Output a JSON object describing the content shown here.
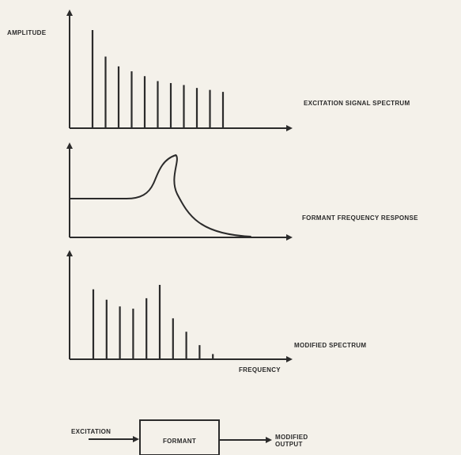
{
  "labels": {
    "amplitude": "AMPLITUDE",
    "frequency": "FREQUENCY",
    "excitation_spectrum": "EXCITATION SIGNAL SPECTRUM",
    "formant_response": "FORMANT FREQUENCY RESPONSE",
    "modified_spectrum": "MODIFIED SPECTRUM"
  },
  "block_diagram": {
    "input_label": "EXCITATION",
    "block_label": "FORMANT",
    "output_label_line1": "MODIFIED",
    "output_label_line2": "OUTPUT"
  },
  "spectra": {
    "excitation_amplitudes": [
      1.0,
      0.73,
      0.63,
      0.58,
      0.53,
      0.48,
      0.46,
      0.44,
      0.41,
      0.39,
      0.37
    ],
    "modified_amplitudes": [
      0.94,
      0.8,
      0.71,
      0.68,
      0.82,
      1.0,
      0.55,
      0.37,
      0.19,
      0.07
    ],
    "formant_peak_position": 0.48
  },
  "colors": {
    "ink": "#2b2b2b",
    "paper": "#f4f1ea"
  }
}
